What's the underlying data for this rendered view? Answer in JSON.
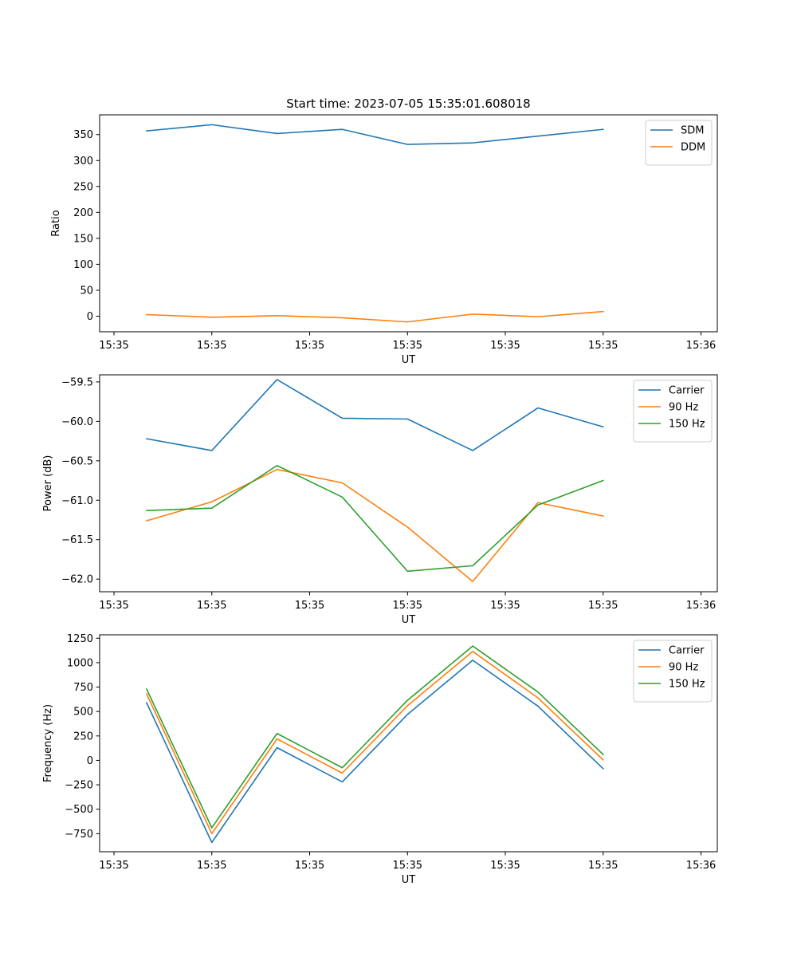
{
  "chart_data": [
    {
      "type": "line",
      "title": "Start time: 2023-07-05 15:35:01.608018",
      "xlabel": "UT",
      "ylabel": "Ratio",
      "x": [
        1,
        2,
        3,
        4,
        5,
        6,
        7,
        8
      ],
      "xlim": [
        0.28,
        9.75
      ],
      "x_ticks": [
        0.5,
        2.0,
        3.5,
        5.0,
        6.5,
        8.0,
        9.5
      ],
      "x_tick_labels": [
        "15:35",
        "15:35",
        "15:35",
        "15:35",
        "15:35",
        "15:35",
        "15:36"
      ],
      "ylim": [
        -30,
        388
      ],
      "y_ticks": [
        0,
        50,
        100,
        150,
        200,
        250,
        300,
        350
      ],
      "y_tick_labels": [
        "0",
        "50",
        "100",
        "150",
        "200",
        "250",
        "300",
        "350"
      ],
      "legend_position": "top-right",
      "series": [
        {
          "name": "SDM",
          "color": "#1f77b4",
          "values": [
            357,
            369,
            352,
            360,
            331,
            334,
            347,
            360
          ]
        },
        {
          "name": "DDM",
          "color": "#ff7f0e",
          "values": [
            3,
            -2,
            1,
            -3,
            -11,
            4,
            -1,
            9
          ]
        }
      ]
    },
    {
      "type": "line",
      "title": "",
      "xlabel": "UT",
      "ylabel": "Power (dB)",
      "x": [
        1,
        2,
        3,
        4,
        5,
        6,
        7,
        8
      ],
      "xlim": [
        0.28,
        9.75
      ],
      "x_ticks": [
        0.5,
        2.0,
        3.5,
        5.0,
        6.5,
        8.0,
        9.5
      ],
      "x_tick_labels": [
        "15:35",
        "15:35",
        "15:35",
        "15:35",
        "15:35",
        "15:35",
        "15:36"
      ],
      "ylim": [
        -62.16,
        -59.41
      ],
      "y_ticks": [
        -62.0,
        -61.5,
        -61.0,
        -60.5,
        -60.0,
        -59.5
      ],
      "y_tick_labels": [
        "−62.0",
        "−61.5",
        "−61.0",
        "−60.5",
        "−60.0",
        "−59.5"
      ],
      "legend_position": "top-right",
      "series": [
        {
          "name": "Carrier",
          "color": "#1f77b4",
          "values": [
            -60.22,
            -60.37,
            -59.47,
            -59.96,
            -59.97,
            -60.37,
            -59.83,
            -60.07
          ]
        },
        {
          "name": "90 Hz",
          "color": "#ff7f0e",
          "values": [
            -61.26,
            -61.02,
            -60.61,
            -60.78,
            -61.34,
            -62.03,
            -61.03,
            -61.2
          ]
        },
        {
          "name": "150 Hz",
          "color": "#2ca02c",
          "values": [
            -61.13,
            -61.1,
            -60.56,
            -60.96,
            -61.9,
            -61.83,
            -61.06,
            -60.75
          ]
        }
      ]
    },
    {
      "type": "line",
      "title": "",
      "xlabel": "UT",
      "ylabel": "Frequency (Hz)",
      "x": [
        1,
        2,
        3,
        4,
        5,
        6,
        7,
        8
      ],
      "xlim": [
        0.28,
        9.75
      ],
      "x_ticks": [
        0.5,
        2.0,
        3.5,
        5.0,
        6.5,
        8.0,
        9.5
      ],
      "x_tick_labels": [
        "15:35",
        "15:35",
        "15:35",
        "15:35",
        "15:35",
        "15:35",
        "15:36"
      ],
      "ylim": [
        -935,
        1285
      ],
      "y_ticks": [
        -750,
        -500,
        -250,
        0,
        250,
        500,
        750,
        1000,
        1250
      ],
      "y_tick_labels": [
        "−750",
        "−500",
        "−250",
        "0",
        "250",
        "500",
        "750",
        "1000",
        "1250"
      ],
      "legend_position": "top-right",
      "series": [
        {
          "name": "Carrier",
          "color": "#1f77b4",
          "values": [
            590,
            -840,
            130,
            -220,
            470,
            1025,
            555,
            -85
          ]
        },
        {
          "name": "90 Hz",
          "color": "#ff7f0e",
          "values": [
            680,
            -750,
            220,
            -130,
            560,
            1115,
            640,
            5
          ]
        },
        {
          "name": "150 Hz",
          "color": "#2ca02c",
          "values": [
            730,
            -690,
            275,
            -75,
            615,
            1170,
            700,
            60
          ]
        }
      ]
    }
  ]
}
